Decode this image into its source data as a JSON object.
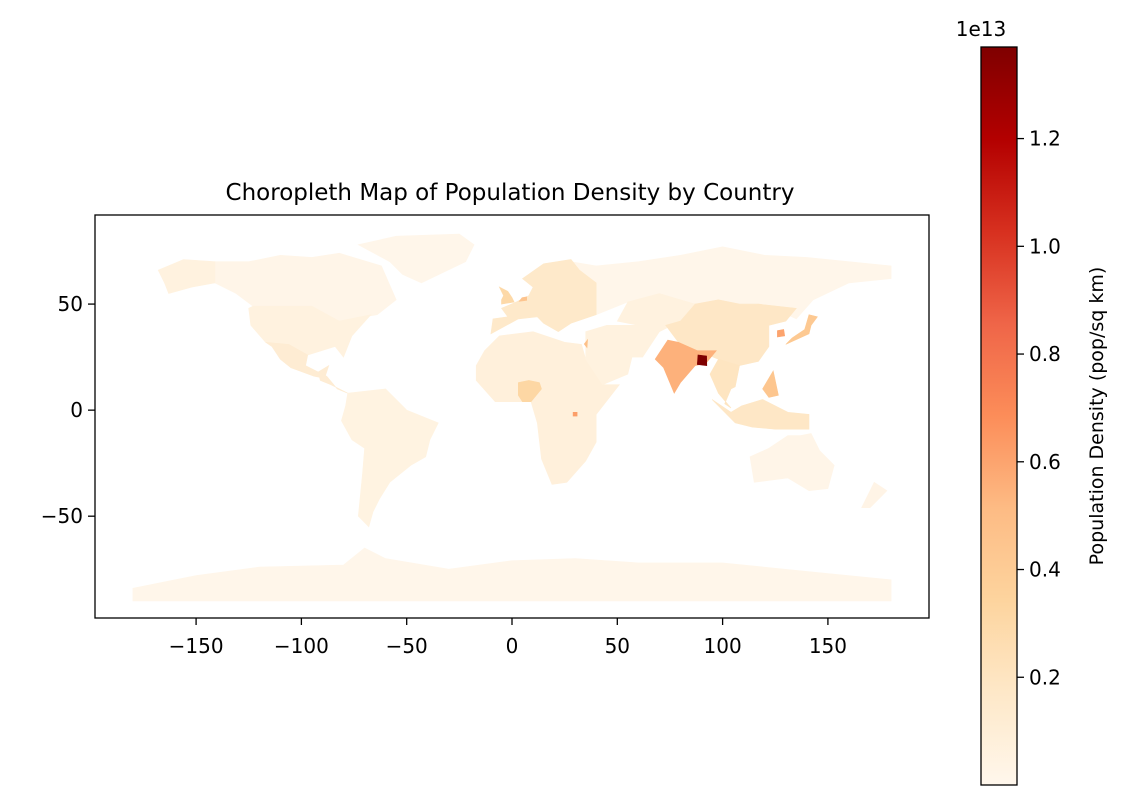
{
  "chart_data": {
    "type": "choropleth",
    "title": "Choropleth Map of Population Density by Country",
    "xlabel": "",
    "ylabel": "",
    "xlim": [
      -198,
      198
    ],
    "ylim": [
      -98,
      92
    ],
    "xticks": [
      -150,
      -100,
      -50,
      0,
      50,
      100,
      150
    ],
    "yticks": [
      -50,
      0,
      50
    ],
    "xtick_labels": [
      "−150",
      "−100",
      "−50",
      "0",
      "50",
      "100",
      "150"
    ],
    "ytick_labels": [
      "−50",
      "0",
      "50"
    ],
    "colormap": "OrRd",
    "colorbar": {
      "label": "Population Density (pop/sq km)",
      "offset_text": "1e13",
      "min": 0.0,
      "max": 1.37,
      "ticks": [
        0.2,
        0.4,
        0.6,
        0.8,
        1.0,
        1.2
      ],
      "tick_labels": [
        "0.2",
        "0.4",
        "0.6",
        "0.8",
        "1.0",
        "1.2"
      ]
    },
    "regions": [
      {
        "name": "Canada",
        "value": 0.02
      },
      {
        "name": "United States",
        "value": 0.06
      },
      {
        "name": "Greenland",
        "value": 0.01
      },
      {
        "name": "Mexico",
        "value": 0.12
      },
      {
        "name": "South America",
        "value": 0.05
      },
      {
        "name": "Africa",
        "value": 0.08
      },
      {
        "name": "Nigeria",
        "value": 0.32
      },
      {
        "name": "Rwanda",
        "value": 0.62
      },
      {
        "name": "Europe",
        "value": 0.16
      },
      {
        "name": "United Kingdom",
        "value": 0.3
      },
      {
        "name": "Netherlands",
        "value": 0.45
      },
      {
        "name": "Russia",
        "value": 0.01
      },
      {
        "name": "Middle East",
        "value": 0.06
      },
      {
        "name": "Israel",
        "value": 0.48
      },
      {
        "name": "India",
        "value": 0.55
      },
      {
        "name": "Bangladesh",
        "value": 1.37
      },
      {
        "name": "China",
        "value": 0.18
      },
      {
        "name": "Japan",
        "value": 0.42
      },
      {
        "name": "South Korea",
        "value": 0.6
      },
      {
        "name": "Philippines",
        "value": 0.44
      },
      {
        "name": "Southeast Asia",
        "value": 0.2
      },
      {
        "name": "Indonesia",
        "value": 0.18
      },
      {
        "name": "Australia",
        "value": 0.02
      },
      {
        "name": "New Zealand",
        "value": 0.03
      },
      {
        "name": "Antarctica",
        "value": 0.01
      }
    ]
  },
  "colors": {
    "axis": "#000000",
    "background": "#ffffff",
    "cmap_stops": [
      "#fff7ec",
      "#fee8c8",
      "#fdd49e",
      "#fdbb84",
      "#fc8d59",
      "#ef6548",
      "#d7301f",
      "#b30000",
      "#7f0000"
    ]
  }
}
